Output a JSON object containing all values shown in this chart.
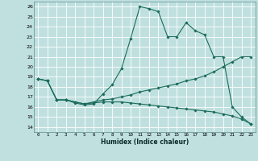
{
  "xlabel": "Humidex (Indice chaleur)",
  "bg_color": "#c0e0e0",
  "line_color": "#1a6b5a",
  "xlim": [
    -0.5,
    23.5
  ],
  "ylim": [
    13.5,
    26.5
  ],
  "yticks": [
    14,
    15,
    16,
    17,
    18,
    19,
    20,
    21,
    22,
    23,
    24,
    25,
    26
  ],
  "xticks": [
    0,
    1,
    2,
    3,
    4,
    5,
    6,
    7,
    8,
    9,
    10,
    11,
    12,
    13,
    14,
    15,
    16,
    17,
    18,
    19,
    20,
    21,
    22,
    23
  ],
  "line1_x": [
    0,
    1,
    2,
    3,
    4,
    5,
    6,
    7,
    8,
    9,
    10,
    11,
    12,
    13,
    14,
    15,
    16,
    17,
    18,
    19,
    20,
    21,
    22,
    23
  ],
  "line1_y": [
    18.8,
    18.6,
    16.7,
    16.7,
    16.4,
    16.2,
    16.3,
    17.3,
    18.2,
    19.8,
    22.8,
    26.0,
    25.8,
    25.5,
    23.0,
    23.0,
    24.4,
    23.6,
    23.2,
    21.0,
    21.0,
    16.0,
    15.0,
    14.3
  ],
  "line2_x": [
    0,
    1,
    2,
    3,
    4,
    5,
    6,
    7,
    8,
    9,
    10,
    11,
    12,
    13,
    14,
    15,
    16,
    17,
    18,
    19,
    20,
    21,
    22,
    23
  ],
  "line2_y": [
    18.8,
    18.6,
    16.7,
    16.7,
    16.5,
    16.3,
    16.5,
    16.7,
    16.8,
    17.0,
    17.2,
    17.5,
    17.7,
    17.9,
    18.1,
    18.3,
    18.6,
    18.8,
    19.1,
    19.5,
    20.0,
    20.5,
    21.0,
    21.0
  ],
  "line3_x": [
    0,
    1,
    2,
    3,
    4,
    5,
    6,
    7,
    8,
    9,
    10,
    11,
    12,
    13,
    14,
    15,
    16,
    17,
    18,
    19,
    20,
    21,
    22,
    23
  ],
  "line3_y": [
    18.8,
    18.6,
    16.7,
    16.7,
    16.5,
    16.3,
    16.4,
    16.5,
    16.5,
    16.5,
    16.4,
    16.3,
    16.2,
    16.1,
    16.0,
    15.9,
    15.8,
    15.7,
    15.6,
    15.5,
    15.3,
    15.1,
    14.8,
    14.3
  ]
}
